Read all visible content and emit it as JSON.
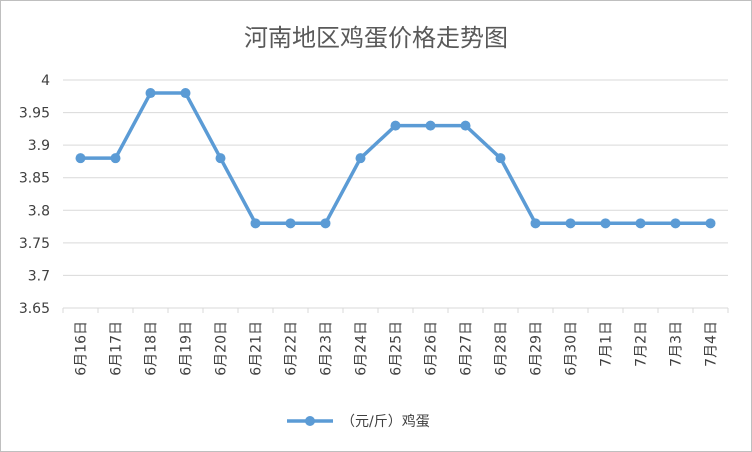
{
  "chart_data": {
    "type": "line",
    "title": "河南地区鸡蛋价格走势图",
    "categories": [
      "6月16日",
      "6月17日",
      "6月18日",
      "6月19日",
      "6月20日",
      "6月21日",
      "6月22日",
      "6月23日",
      "6月24日",
      "6月25日",
      "6月26日",
      "6月27日",
      "6月28日",
      "6月29日",
      "6月30日",
      "7月1日",
      "7月2日",
      "7月3日",
      "7月4日"
    ],
    "series": [
      {
        "name": "（元/斤）鸡蛋",
        "values": [
          3.88,
          3.88,
          3.98,
          3.98,
          3.88,
          3.78,
          3.78,
          3.78,
          3.88,
          3.93,
          3.93,
          3.93,
          3.88,
          3.78,
          3.78,
          3.78,
          3.78,
          3.78,
          3.78
        ]
      }
    ],
    "ylim": [
      3.65,
      4
    ],
    "yticks": [
      "3.65",
      "3.7",
      "3.75",
      "3.8",
      "3.85",
      "3.9",
      "3.95",
      "4"
    ],
    "grid": true,
    "legend_position": "bottom",
    "colors": {
      "line": "#5b9bd5",
      "grid": "#d9d9d9",
      "text": "#404040"
    }
  }
}
